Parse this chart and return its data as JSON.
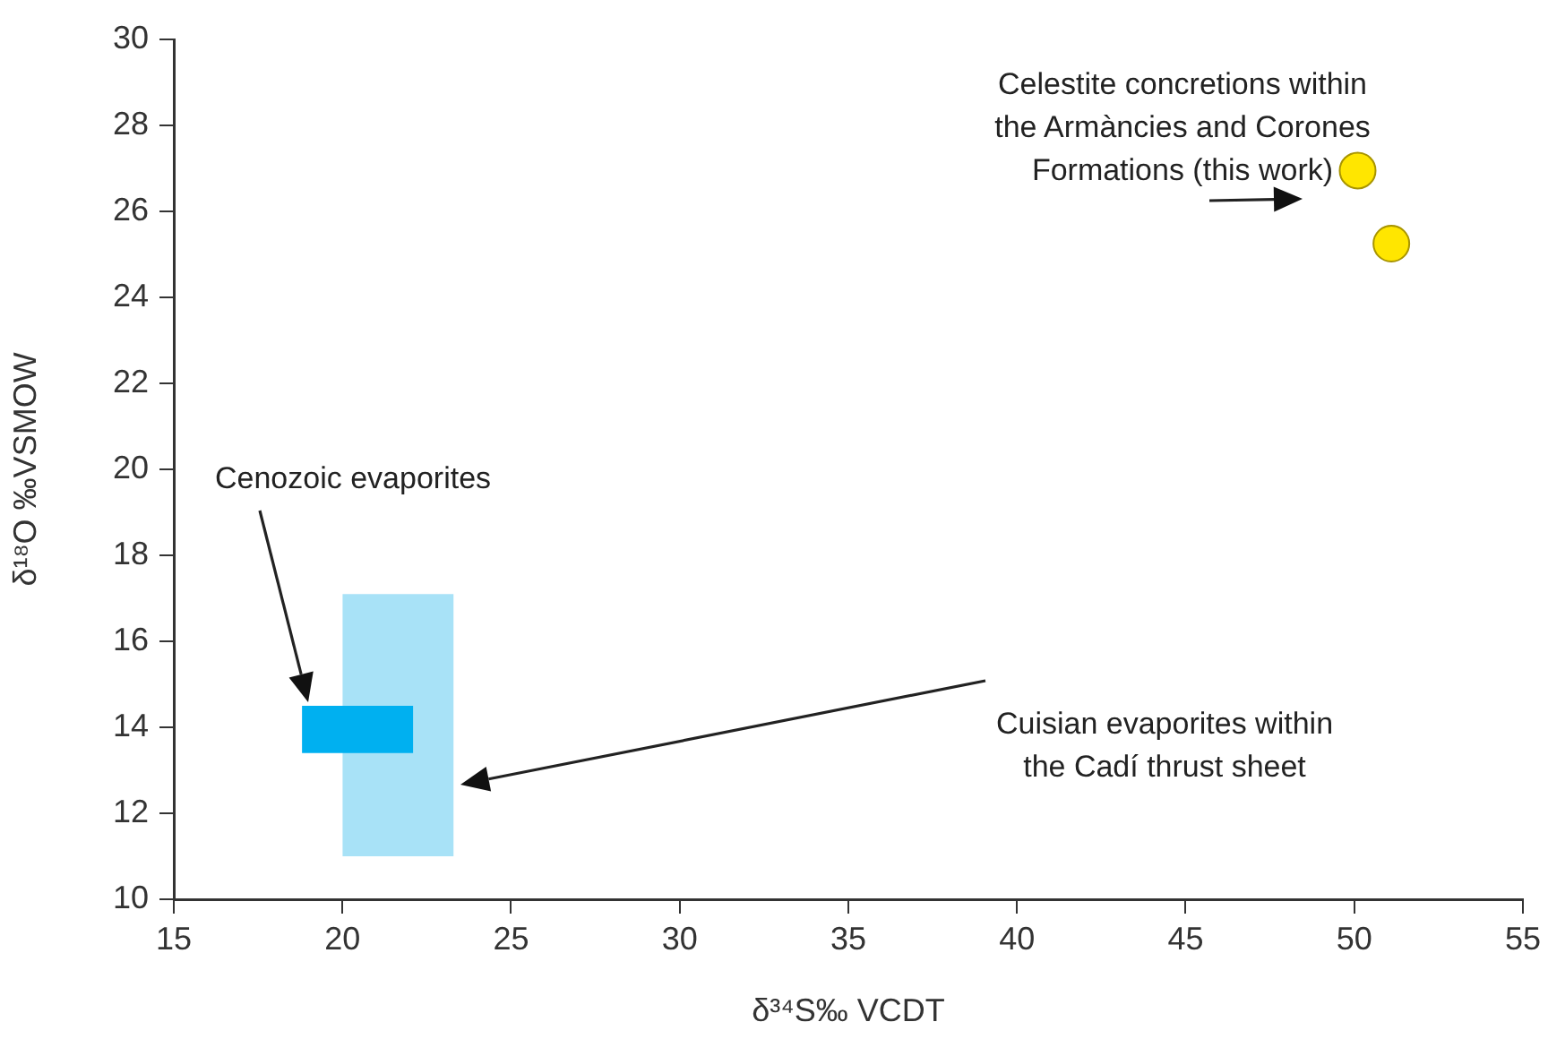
{
  "chart_data": {
    "type": "scatter",
    "xlabel": "δ³⁴S‰ VCDT",
    "ylabel": "δ¹⁸O ‰VSMOW",
    "xlim": [
      15,
      55
    ],
    "xticks": [
      15,
      20,
      25,
      30,
      35,
      40,
      45,
      50,
      55
    ],
    "ylim": [
      10,
      30
    ],
    "yticks": [
      10,
      12,
      14,
      16,
      18,
      20,
      22,
      24,
      26,
      28,
      30
    ],
    "grid": false,
    "legend": false,
    "series": [
      {
        "type": "area",
        "color": "#a8e2f7",
        "x": [
          20.0,
          23.3
        ],
        "values": [
          null,
          null
        ],
        "lower": [
          11.0,
          11.0
        ],
        "upper": [
          17.1,
          17.1
        ]
      },
      {
        "type": "area",
        "color": "#00b0f0",
        "x": [
          18.8,
          22.1
        ],
        "values": [
          null,
          null
        ],
        "lower": [
          13.4,
          13.4
        ],
        "upper": [
          14.5,
          14.5
        ]
      },
      {
        "marker": "circle",
        "color": "#ffe600",
        "x": [
          50.1,
          51.1
        ],
        "values": [
          26.95,
          25.25
        ]
      }
    ],
    "annotations": [
      "Celestite concretions within\nthe Armàncies and Corones\nFormations (this work)",
      "Cenozoic evaporites",
      "Cuisian evaporites within\nthe Cadí thrust sheet"
    ]
  }
}
